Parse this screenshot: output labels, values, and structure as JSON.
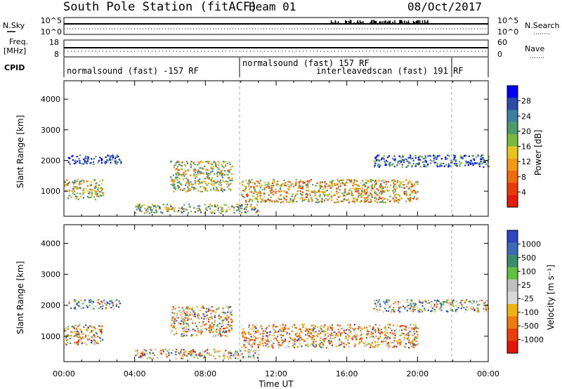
{
  "header": {
    "station": "South Pole Station (fitACF)",
    "beam": "Beam 01",
    "date": "08/Oct/2017"
  },
  "top_panels": {
    "nsky_label": "N.Sky",
    "nsky_ticks": [
      "10^5",
      "10^0"
    ],
    "nsearch_ticks": [
      "10^5",
      "10^0"
    ],
    "nsearch_label": "N.Search",
    "freq_label": "Freq.",
    "freq_unit": "[MHz]",
    "freq_ticks": [
      "18",
      "8"
    ],
    "nave_ticks": [
      "60",
      "0"
    ],
    "nave_label": "Nave",
    "cpid_label": "CPID",
    "cpid_segments": [
      {
        "label": "normalsound (fast) -157 RF",
        "start": 0,
        "end": 10
      },
      {
        "label": "normalsound (fast) 157 RF",
        "start": 10,
        "end": 22
      },
      {
        "label": "interleavedscan (fast) 191 RF",
        "start": 14.8,
        "end": 22
      }
    ]
  },
  "chart_data": [
    {
      "type": "heatmap",
      "title": "",
      "xlabel": "",
      "ylabel": "Slant Range [km]",
      "x_ticks": [
        "00:00",
        "04:00",
        "08:00",
        "12:00",
        "16:00",
        "20:00",
        "00:00"
      ],
      "y_ticks": [
        "1000",
        "2000",
        "3000",
        "4000"
      ],
      "ylim": [
        180,
        4600
      ],
      "xlim": [
        0,
        24
      ],
      "colorbar": {
        "label": "Power [dB]",
        "ticks": [
          "28",
          "24",
          "20",
          "16",
          "12",
          "8",
          "4"
        ],
        "range": [
          0,
          32
        ]
      }
    },
    {
      "type": "heatmap",
      "title": "",
      "xlabel": "Time UT",
      "ylabel": "Slant Range [km]",
      "x_ticks": [
        "00:00",
        "04:00",
        "08:00",
        "12:00",
        "16:00",
        "20:00",
        "00:00"
      ],
      "y_ticks": [
        "1000",
        "2000",
        "3000",
        "4000"
      ],
      "ylim": [
        180,
        4600
      ],
      "xlim": [
        0,
        24
      ],
      "colorbar": {
        "label": "Velocity [m s⁻¹]",
        "ticks": [
          "1000",
          "500",
          "100",
          "25",
          "-25",
          "-100",
          "-500",
          "-1000"
        ]
      },
      "echo_regions": [
        {
          "t_start": 0.0,
          "t_end": 2.2,
          "r_start": 750,
          "r_end": 1400,
          "level": 0.55
        },
        {
          "t_start": 0.2,
          "t_end": 3.2,
          "r_start": 1900,
          "r_end": 2200,
          "level": 0.15
        },
        {
          "t_start": 6.0,
          "t_end": 9.5,
          "r_start": 1000,
          "r_end": 2000,
          "level": 0.5
        },
        {
          "t_start": 10.0,
          "t_end": 20.0,
          "r_start": 650,
          "r_end": 1400,
          "level": 0.6
        },
        {
          "t_start": 17.5,
          "t_end": 24.0,
          "r_start": 1800,
          "r_end": 2200,
          "level": 0.25
        },
        {
          "t_start": 4.0,
          "t_end": 11.0,
          "r_start": 300,
          "r_end": 600,
          "level": 0.45
        }
      ]
    }
  ]
}
